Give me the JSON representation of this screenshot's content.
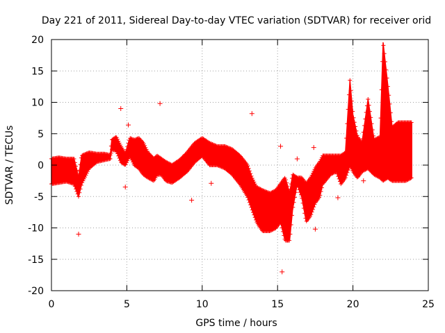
{
  "chart_data": {
    "type": "scatter",
    "title": "Day 221 of 2011, Sidereal Day-to-day VTEC variation (SDTVAR) for receiver orid",
    "xlabel": "GPS time / hours",
    "ylabel": "SDTVAR / TECUs",
    "xlim": [
      0,
      25
    ],
    "ylim": [
      -20,
      20
    ],
    "xticks": [
      0,
      5,
      10,
      15,
      20,
      25
    ],
    "yticks": [
      -20,
      -15,
      -10,
      -5,
      0,
      5,
      10,
      15,
      20
    ],
    "grid": true,
    "marker": "+",
    "color": "#ff0000",
    "series": [
      {
        "name": "SDTVAR",
        "band": {
          "t": [
            0.0,
            0.5,
            1.0,
            1.5,
            1.8,
            2.0,
            2.5,
            3.0,
            3.5,
            3.9,
            4.0,
            4.3,
            4.6,
            4.9,
            5.2,
            5.5,
            5.8,
            6.1,
            6.4,
            6.8,
            7.0,
            7.3,
            7.6,
            8.0,
            8.5,
            9.0,
            9.5,
            10.0,
            10.5,
            11.0,
            11.5,
            12.0,
            12.5,
            13.0,
            13.3,
            13.6,
            14.0,
            14.5,
            14.9,
            15.2,
            15.5,
            15.8,
            16.0,
            16.3,
            16.6,
            16.9,
            17.2,
            17.5,
            17.8,
            18.0,
            18.5,
            18.9,
            19.2,
            19.5,
            19.8,
            20.0,
            20.3,
            20.6,
            21.0,
            21.4,
            21.8,
            22.0,
            22.3,
            22.6,
            23.0,
            23.5,
            23.9
          ],
          "low": [
            -3.0,
            -2.8,
            -2.6,
            -3.0,
            -5.0,
            -3.0,
            -0.5,
            0.5,
            0.8,
            1.0,
            2.5,
            2.3,
            0.5,
            0.0,
            1.5,
            0.0,
            -0.5,
            -1.5,
            -2.0,
            -2.5,
            -1.5,
            -1.5,
            -2.5,
            -2.8,
            -2.0,
            -1.0,
            0.5,
            1.5,
            0.0,
            0.0,
            -0.5,
            -1.5,
            -3.0,
            -5.0,
            -7.0,
            -9.0,
            -10.5,
            -10.5,
            -10.0,
            -9.0,
            -12.0,
            -12.0,
            -7.0,
            -3.0,
            -5.0,
            -9.0,
            -8.0,
            -6.0,
            -5.0,
            -3.0,
            -1.5,
            -1.0,
            -3.0,
            -2.0,
            0.0,
            -1.0,
            -2.0,
            -1.0,
            -0.5,
            -1.5,
            -2.0,
            -2.5,
            -2.0,
            -2.5,
            -2.5,
            -2.5,
            -2.0
          ],
          "high": [
            1.0,
            1.2,
            1.0,
            1.0,
            -2.0,
            1.5,
            2.0,
            1.8,
            1.8,
            1.6,
            4.0,
            4.5,
            3.0,
            1.8,
            4.3,
            4.0,
            4.3,
            3.5,
            2.0,
            1.0,
            1.5,
            1.0,
            0.5,
            0.0,
            0.8,
            2.0,
            3.5,
            4.3,
            3.5,
            3.0,
            3.0,
            2.5,
            1.5,
            0.0,
            -2.0,
            -3.5,
            -4.0,
            -4.5,
            -4.0,
            -3.0,
            -2.0,
            -4.5,
            -1.5,
            -2.0,
            -2.0,
            -3.0,
            -2.0,
            -0.5,
            0.5,
            1.5,
            1.5,
            1.5,
            1.5,
            2.0,
            13.5,
            8.0,
            4.5,
            3.5,
            10.5,
            4.0,
            4.5,
            19.5,
            13.0,
            6.0,
            6.8,
            6.8,
            6.8
          ]
        },
        "outliers": [
          [
            1.8,
            -11.0
          ],
          [
            4.6,
            9.0
          ],
          [
            4.9,
            -3.5
          ],
          [
            5.1,
            6.4
          ],
          [
            7.2,
            9.8
          ],
          [
            9.3,
            -5.6
          ],
          [
            10.6,
            -2.9
          ],
          [
            13.3,
            8.2
          ],
          [
            15.2,
            3.0
          ],
          [
            15.3,
            -17.0
          ],
          [
            16.3,
            1.0
          ],
          [
            17.4,
            2.8
          ],
          [
            17.5,
            -10.2
          ],
          [
            19.0,
            -5.2
          ],
          [
            20.7,
            -2.5
          ]
        ]
      }
    ]
  }
}
